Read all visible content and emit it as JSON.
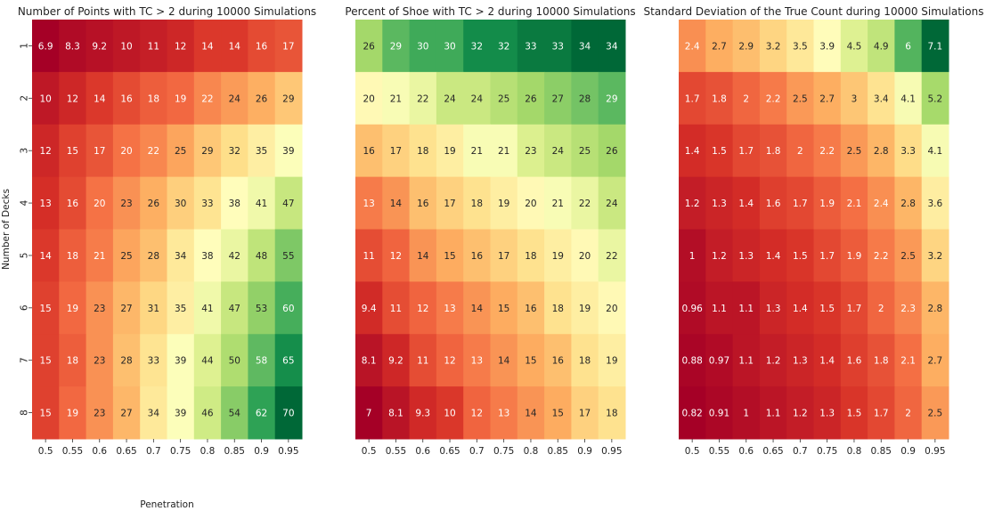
{
  "chart_data": [
    {
      "type": "heatmap",
      "title": "Number of Points with TC > 2 during 10000 Simulations",
      "xlabel": "Penetration",
      "ylabel": "Number of Decks",
      "colormap": "RdYlGn",
      "x_categories": [
        "0.5",
        "0.55",
        "0.6",
        "0.65",
        "0.7",
        "0.75",
        "0.8",
        "0.85",
        "0.9",
        "0.95"
      ],
      "y_categories": [
        "1",
        "2",
        "3",
        "4",
        "5",
        "6",
        "7",
        "8"
      ],
      "show_y_ticks": true,
      "values": [
        [
          6.9,
          8.3,
          9.2,
          10,
          11,
          12,
          14,
          14,
          16,
          17
        ],
        [
          10,
          12,
          14,
          16,
          18,
          19,
          22,
          24,
          26,
          29
        ],
        [
          12,
          15,
          17,
          20,
          22,
          25,
          29,
          32,
          35,
          39
        ],
        [
          13,
          16,
          20,
          23,
          26,
          30,
          33,
          38,
          41,
          47
        ],
        [
          14,
          18,
          21,
          25,
          28,
          34,
          38,
          42,
          48,
          55
        ],
        [
          15,
          19,
          23,
          27,
          31,
          35,
          41,
          47,
          53,
          60
        ],
        [
          15,
          18,
          23,
          28,
          33,
          39,
          44,
          50,
          58,
          65
        ],
        [
          15,
          19,
          23,
          27,
          34,
          39,
          46,
          54,
          62,
          70
        ]
      ]
    },
    {
      "type": "heatmap",
      "title": "Percent of Shoe with TC > 2 during 10000 Simulations",
      "xlabel": "",
      "ylabel": "",
      "colormap": "RdYlGn",
      "x_categories": [
        "0.5",
        "0.55",
        "0.6",
        "0.65",
        "0.7",
        "0.75",
        "0.8",
        "0.85",
        "0.9",
        "0.95"
      ],
      "y_categories": [
        "1",
        "2",
        "3",
        "4",
        "5",
        "6",
        "7",
        "8"
      ],
      "show_y_ticks": false,
      "values": [
        [
          26,
          29,
          30,
          30,
          32,
          32,
          33,
          33,
          34,
          34
        ],
        [
          20,
          21,
          22,
          24,
          24,
          25,
          26,
          27,
          28,
          29
        ],
        [
          16,
          17,
          18,
          19,
          21,
          21,
          23,
          24,
          25,
          26
        ],
        [
          13,
          14,
          16,
          17,
          18,
          19,
          20,
          21,
          22,
          24
        ],
        [
          11,
          12,
          14,
          15,
          16,
          17,
          18,
          19,
          20,
          22
        ],
        [
          9.4,
          11,
          12,
          13,
          14,
          15,
          16,
          18,
          19,
          20
        ],
        [
          8.1,
          9.2,
          11,
          12,
          13,
          14,
          15,
          16,
          18,
          19
        ],
        [
          7,
          8.1,
          9.3,
          10,
          12,
          13,
          14,
          15,
          17,
          18
        ]
      ]
    },
    {
      "type": "heatmap",
      "title": "Standard Deviation of the True Count during 10000 Simulations",
      "xlabel": "",
      "ylabel": "",
      "colormap": "RdYlGn",
      "x_categories": [
        "0.5",
        "0.55",
        "0.6",
        "0.65",
        "0.7",
        "0.75",
        "0.8",
        "0.85",
        "0.9",
        "0.95"
      ],
      "y_categories": [
        "1",
        "2",
        "3",
        "4",
        "5",
        "6",
        "7",
        "8"
      ],
      "show_y_ticks": false,
      "values": [
        [
          2.4,
          2.7,
          2.9,
          3.2,
          3.5,
          3.9,
          4.5,
          4.9,
          6,
          7.1
        ],
        [
          1.7,
          1.8,
          2,
          2.2,
          2.5,
          2.7,
          3,
          3.4,
          4.1,
          5.2
        ],
        [
          1.4,
          1.5,
          1.7,
          1.8,
          2,
          2.2,
          2.5,
          2.8,
          3.3,
          4.1
        ],
        [
          1.2,
          1.3,
          1.4,
          1.6,
          1.7,
          1.9,
          2.1,
          2.4,
          2.8,
          3.6
        ],
        [
          1,
          1.2,
          1.3,
          1.4,
          1.5,
          1.7,
          1.9,
          2.2,
          2.5,
          3.2
        ],
        [
          0.96,
          1.1,
          1.1,
          1.3,
          1.4,
          1.5,
          1.7,
          2,
          2.3,
          2.8
        ],
        [
          0.88,
          0.97,
          1.1,
          1.2,
          1.3,
          1.4,
          1.6,
          1.8,
          2.1,
          2.7
        ],
        [
          0.82,
          0.91,
          1,
          1.1,
          1.2,
          1.3,
          1.5,
          1.7,
          2,
          2.5
        ]
      ]
    }
  ]
}
